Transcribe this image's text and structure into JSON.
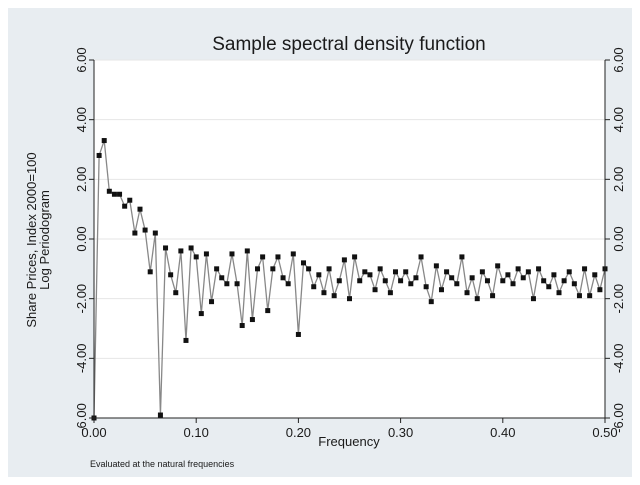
{
  "chart_data": {
    "type": "line",
    "title": "Sample spectral density function",
    "xlabel": "Frequency",
    "ylabel_lines": [
      "Share Prices, Index 2000=100",
      "Log Periodogram"
    ],
    "note": "Evaluated at the natural frequencies",
    "xlim": [
      0,
      0.5
    ],
    "ylim": [
      -6,
      6
    ],
    "x_ticks": [
      "0.00",
      "0.10",
      "0.20",
      "0.30",
      "0.40",
      "0.50"
    ],
    "y_ticks": [
      "6.00",
      "4.00",
      "2.00",
      "0.00",
      "-2.00",
      "-4.00",
      "-6.00"
    ],
    "right_axis": true,
    "grid": "horizontal",
    "marker": "square",
    "series": [
      {
        "x_start": 0.0,
        "x_step": 0.005,
        "values": [
          -6.0,
          2.8,
          3.3,
          1.6,
          1.5,
          1.5,
          1.1,
          1.3,
          0.2,
          1.0,
          0.3,
          -1.1,
          0.2,
          -5.9,
          -0.3,
          -1.2,
          -1.8,
          -0.4,
          -3.4,
          -0.3,
          -0.6,
          -2.5,
          -0.5,
          -2.1,
          -1.0,
          -1.3,
          -1.5,
          -0.5,
          -1.5,
          -2.9,
          -0.4,
          -2.7,
          -1.0,
          -0.6,
          -2.4,
          -1.0,
          -0.6,
          -1.3,
          -1.5,
          -0.5,
          -3.2,
          -0.8,
          -1.0,
          -1.6,
          -1.2,
          -1.8,
          -1.0,
          -1.9,
          -1.4,
          -0.7,
          -2.0,
          -0.6,
          -1.4,
          -1.1,
          -1.2,
          -1.7,
          -1.0,
          -1.4,
          -1.8,
          -1.1,
          -1.4,
          -1.1,
          -1.5,
          -1.3,
          -0.6,
          -1.6,
          -2.1,
          -0.9,
          -1.7,
          -1.1,
          -1.3,
          -1.5,
          -0.6,
          -1.8,
          -1.3,
          -2.0,
          -1.1,
          -1.4,
          -1.9,
          -0.9,
          -1.4,
          -1.2,
          -1.5,
          -1.0,
          -1.3,
          -1.1,
          -2.0,
          -1.0,
          -1.4,
          -1.6,
          -1.2,
          -1.8,
          -1.4,
          -1.1,
          -1.5,
          -1.9,
          -1.0,
          -1.9,
          -1.2,
          -1.7,
          -1.0
        ]
      }
    ]
  }
}
